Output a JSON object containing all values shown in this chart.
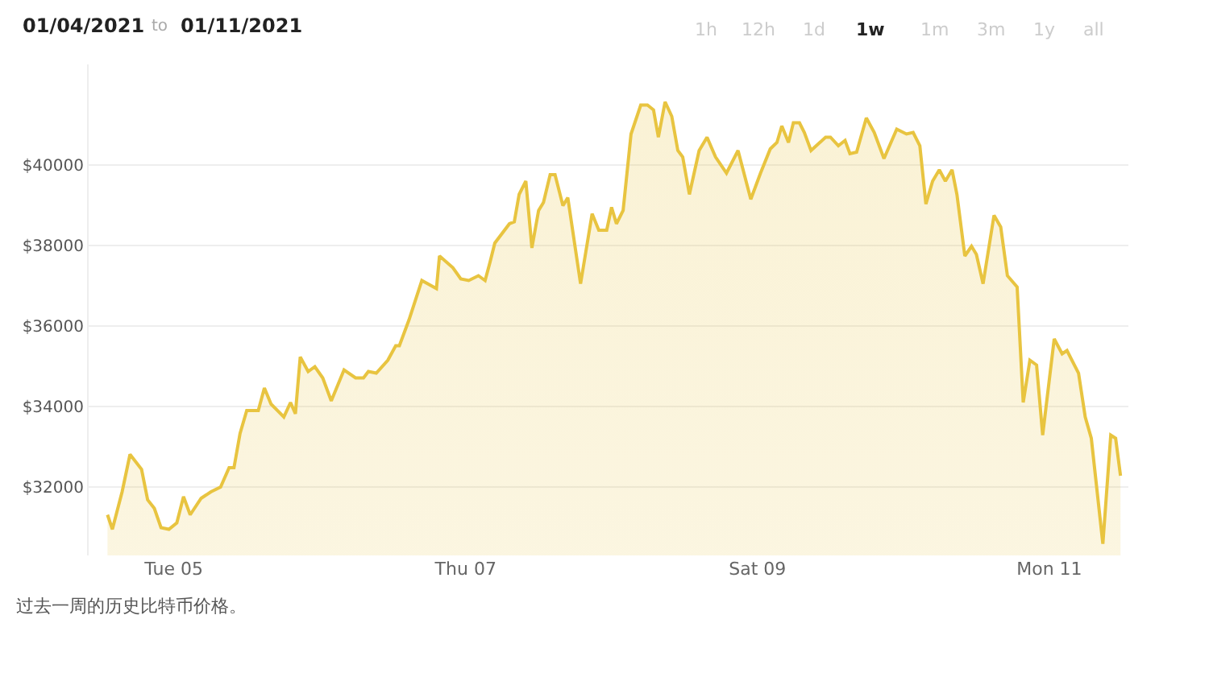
{
  "chart_data": {
    "type": "area",
    "color": "#e8c440",
    "x": [
      "2021-01-04T13:06",
      "2021-01-04T13:54",
      "2021-01-04T15:30",
      "2021-01-04T16:48",
      "2021-01-04T18:42",
      "2021-01-04T19:42",
      "2021-01-04T20:48",
      "2021-01-04T21:54",
      "2021-01-04T23:12",
      "2021-01-05T00:30",
      "2021-01-05T01:36",
      "2021-01-05T02:42",
      "2021-01-05T04:30",
      "2021-01-05T06:06",
      "2021-01-05T07:42",
      "2021-01-05T09:06",
      "2021-01-05T09:54",
      "2021-01-05T10:54",
      "2021-01-05T12:00",
      "2021-01-05T13:54",
      "2021-01-05T14:54",
      "2021-01-05T16:00",
      "2021-01-05T18:06",
      "2021-01-05T19:12",
      "2021-01-05T20:00",
      "2021-01-05T20:48",
      "2021-01-05T22:06",
      "2021-01-05T23:12",
      "2021-01-06T00:30",
      "2021-01-06T01:54",
      "2021-01-06T04:00",
      "2021-01-06T05:54",
      "2021-01-06T07:12",
      "2021-01-06T08:00",
      "2021-01-06T09:18",
      "2021-01-06T11:12",
      "2021-01-06T12:30",
      "2021-01-06T13:06",
      "2021-01-06T14:42",
      "2021-01-06T16:48",
      "2021-01-06T19:12",
      "2021-01-06T19:42",
      "2021-01-06T21:54",
      "2021-01-06T23:12",
      "2021-01-07T00:30",
      "2021-01-07T02:06",
      "2021-01-07T03:12",
      "2021-01-07T04:00",
      "2021-01-07T04:48",
      "2021-01-07T07:12",
      "2021-01-07T08:00",
      "2021-01-07T08:48",
      "2021-01-07T09:54",
      "2021-01-07T10:54",
      "2021-01-07T12:00",
      "2021-01-07T12:48",
      "2021-01-07T13:54",
      "2021-01-07T14:42",
      "2021-01-07T16:00",
      "2021-01-07T16:48",
      "2021-01-07T18:54",
      "2021-01-07T20:48",
      "2021-01-07T21:54",
      "2021-01-07T23:12",
      "2021-01-08T00:00",
      "2021-01-08T00:48",
      "2021-01-08T01:54",
      "2021-01-08T03:12",
      "2021-01-08T04:48",
      "2021-01-08T05:54",
      "2021-01-08T06:54",
      "2021-01-08T07:42",
      "2021-01-08T08:48",
      "2021-01-08T09:54",
      "2021-01-08T10:54",
      "2021-01-08T11:42",
      "2021-01-08T12:48",
      "2021-01-08T14:24",
      "2021-01-08T15:42",
      "2021-01-08T17:06",
      "2021-01-08T18:54",
      "2021-01-08T20:48",
      "2021-01-08T22:54",
      "2021-01-09T00:30",
      "2021-01-09T02:06",
      "2021-01-09T03:12",
      "2021-01-09T04:00",
      "2021-01-09T05:06",
      "2021-01-09T05:54",
      "2021-01-09T06:54",
      "2021-01-09T07:42",
      "2021-01-09T08:48",
      "2021-01-09T11:12",
      "2021-01-09T12:00",
      "2021-01-09T13:18",
      "2021-01-09T14:24",
      "2021-01-09T15:12",
      "2021-01-09T16:18",
      "2021-01-09T17:54",
      "2021-01-09T19:12",
      "2021-01-09T20:48",
      "2021-01-09T22:54",
      "2021-01-10T00:30",
      "2021-01-10T01:36",
      "2021-01-10T02:42",
      "2021-01-10T03:42",
      "2021-01-10T04:48",
      "2021-01-10T05:54",
      "2021-01-10T06:54",
      "2021-01-10T08:00",
      "2021-01-10T08:48",
      "2021-01-10T10:06",
      "2021-01-10T11:12",
      "2021-01-10T12:00",
      "2021-01-10T13:06",
      "2021-01-10T14:54",
      "2021-01-10T16:00",
      "2021-01-10T17:06",
      "2021-01-10T18:42",
      "2021-01-10T19:42",
      "2021-01-10T20:48",
      "2021-01-10T21:54",
      "2021-01-10T22:54",
      "2021-01-11T00:48",
      "2021-01-11T02:06",
      "2021-01-11T02:54",
      "2021-01-11T04:48",
      "2021-01-11T05:54",
      "2021-01-11T06:54",
      "2021-01-11T08:48",
      "2021-01-11T10:06",
      "2021-01-11T10:54",
      "2021-01-11T11:42"
    ],
    "values": [
      31310,
      30950,
      31880,
      32810,
      32440,
      31680,
      31470,
      30990,
      30950,
      31110,
      31760,
      31310,
      31720,
      31880,
      32000,
      32480,
      32480,
      33330,
      33900,
      33900,
      34460,
      34060,
      33740,
      34100,
      33820,
      35230,
      34870,
      34990,
      34710,
      34140,
      34910,
      34710,
      34710,
      34870,
      34830,
      35150,
      35510,
      35510,
      36160,
      37130,
      36930,
      37740,
      37450,
      37170,
      37130,
      37250,
      37130,
      37580,
      38060,
      38540,
      38590,
      39270,
      39600,
      37940,
      38870,
      39070,
      39760,
      39760,
      38990,
      39190,
      37050,
      38790,
      38380,
      38380,
      38950,
      38540,
      38870,
      40770,
      41490,
      41490,
      41370,
      40690,
      41570,
      41210,
      40360,
      40200,
      39270,
      40360,
      40690,
      40200,
      39800,
      40360,
      39150,
      39800,
      40400,
      40560,
      40970,
      40560,
      41050,
      41050,
      40810,
      40360,
      40690,
      40690,
      40480,
      40610,
      40280,
      40320,
      41170,
      40810,
      40160,
      40890,
      40770,
      40810,
      40480,
      39030,
      39600,
      39880,
      39600,
      39880,
      39270,
      37740,
      37980,
      37780,
      37050,
      38750,
      38460,
      37250,
      36970,
      34100,
      35150,
      35030,
      33290,
      35680,
      35310,
      35390,
      34830,
      33740,
      33210,
      30590,
      33290,
      33210,
      32280
    ],
    "xlim": [
      "2021-01-04T10:00",
      "2021-01-11T13:00"
    ],
    "ylim": [
      30300,
      42500
    ],
    "xticks": [
      {
        "value": "2021-01-05",
        "label": "Tue 05"
      },
      {
        "value": "2021-01-07",
        "label": "Thu 07"
      },
      {
        "value": "2021-01-09",
        "label": "Sat 09"
      },
      {
        "value": "2021-01-11",
        "label": "Mon 11"
      }
    ],
    "yticks": [
      {
        "value": 32000,
        "label": "$32000"
      },
      {
        "value": 34000,
        "label": "$34000"
      },
      {
        "value": 36000,
        "label": "$36000"
      },
      {
        "value": 38000,
        "label": "$38000"
      },
      {
        "value": 40000,
        "label": "$40000"
      }
    ],
    "grid": "y",
    "legend": false,
    "marker": "none",
    "line_style": "solid",
    "annotations": [
      "01/04/2021",
      "to",
      "01/11/2021",
      "1h",
      "12h",
      "1d",
      "1w",
      "1m",
      "3m",
      "1y",
      "all",
      "过去一周的历史比特币价格。"
    ]
  }
}
